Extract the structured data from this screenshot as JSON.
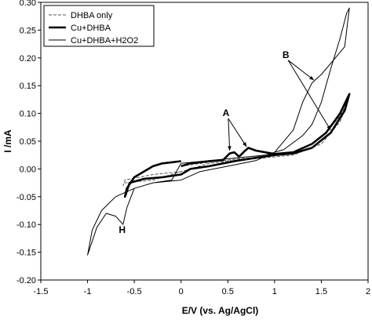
{
  "chart_data": {
    "type": "line",
    "xlabel": "E/V (vs. Ag/AgCl)",
    "ylabel": "I /mA",
    "xlim": [
      -1.5,
      2
    ],
    "ylim": [
      -0.2,
      0.3
    ],
    "x_ticks": [
      -1.5,
      -1,
      -0.5,
      0,
      0.5,
      1,
      1.5,
      2
    ],
    "x_tick_labels": [
      "-1.5",
      "-1",
      "-0.5",
      "0",
      "0.5",
      "1",
      "1.5",
      "2"
    ],
    "y_ticks": [
      -0.2,
      -0.15,
      -0.1,
      -0.05,
      0,
      0.05,
      0.1,
      0.15,
      0.2,
      0.25,
      0.3
    ],
    "y_tick_labels": [
      "-0.20",
      "-0.15",
      "-0.10",
      "-0.05",
      "0.00",
      "0.05",
      "0.10",
      "0.15",
      "0.20",
      "0.25",
      "0.30"
    ],
    "grid": false,
    "legend_position": "top-left",
    "series": [
      {
        "name": "DHBA only",
        "style": "dashed",
        "color": "#555555",
        "points": [
          [
            0,
            0.005
          ],
          [
            0.3,
            0.012
          ],
          [
            0.6,
            0.018
          ],
          [
            0.9,
            0.022
          ],
          [
            1.2,
            0.03
          ],
          [
            1.4,
            0.045
          ],
          [
            1.55,
            0.065
          ],
          [
            1.7,
            0.095
          ],
          [
            1.78,
            0.12
          ],
          [
            1.7,
            0.085
          ],
          [
            1.5,
            0.045
          ],
          [
            1.2,
            0.025
          ],
          [
            0.9,
            0.02
          ],
          [
            0.6,
            0.016
          ],
          [
            0.3,
            0.01
          ],
          [
            0,
            -0.005
          ],
          [
            -0.3,
            -0.02
          ],
          [
            -0.6,
            -0.025
          ],
          [
            -0.62,
            -0.03
          ],
          [
            -0.6,
            -0.02
          ],
          [
            -0.3,
            -0.01
          ],
          [
            0,
            -0.005
          ]
        ]
      },
      {
        "name": "Cu+DHBA",
        "style": "bold",
        "color": "#000000",
        "points": [
          [
            0,
            0.005
          ],
          [
            0.1,
            0.01
          ],
          [
            0.3,
            0.014
          ],
          [
            0.45,
            0.016
          ],
          [
            0.52,
            0.028
          ],
          [
            0.57,
            0.03
          ],
          [
            0.62,
            0.022
          ],
          [
            0.68,
            0.032
          ],
          [
            0.72,
            0.038
          ],
          [
            0.8,
            0.033
          ],
          [
            1.0,
            0.027
          ],
          [
            1.2,
            0.03
          ],
          [
            1.4,
            0.045
          ],
          [
            1.55,
            0.065
          ],
          [
            1.7,
            0.1
          ],
          [
            1.8,
            0.135
          ],
          [
            1.75,
            0.105
          ],
          [
            1.6,
            0.065
          ],
          [
            1.4,
            0.038
          ],
          [
            1.2,
            0.028
          ],
          [
            1.0,
            0.025
          ],
          [
            0.8,
            0.02
          ],
          [
            0.6,
            0.015
          ],
          [
            0.3,
            0.005
          ],
          [
            0.1,
            0.0
          ],
          [
            0,
            -0.01
          ],
          [
            -0.2,
            -0.015
          ],
          [
            -0.4,
            -0.018
          ],
          [
            -0.55,
            -0.025
          ],
          [
            -0.6,
            -0.05
          ],
          [
            -0.58,
            -0.035
          ],
          [
            -0.5,
            -0.015
          ],
          [
            -0.4,
            -0.005
          ],
          [
            -0.3,
            0.005
          ],
          [
            -0.2,
            0.01
          ],
          [
            -0.1,
            0.012
          ],
          [
            0,
            0.014
          ]
        ]
      },
      {
        "name": "Cu+DHBA+H2O2",
        "style": "thin",
        "color": "#000000",
        "points": [
          [
            0,
            0.01
          ],
          [
            0.3,
            0.015
          ],
          [
            0.6,
            0.02
          ],
          [
            0.9,
            0.025
          ],
          [
            1.1,
            0.035
          ],
          [
            1.3,
            0.06
          ],
          [
            1.4,
            0.08
          ],
          [
            1.5,
            0.12
          ],
          [
            1.6,
            0.18
          ],
          [
            1.7,
            0.235
          ],
          [
            1.77,
            0.28
          ],
          [
            1.8,
            0.29
          ],
          [
            1.75,
            0.22
          ],
          [
            1.65,
            0.2
          ],
          [
            1.5,
            0.17
          ],
          [
            1.4,
            0.155
          ],
          [
            1.3,
            0.12
          ],
          [
            1.2,
            0.07
          ],
          [
            1.0,
            0.03
          ],
          [
            0.8,
            0.015
          ],
          [
            0.5,
            0.005
          ],
          [
            0.2,
            -0.005
          ],
          [
            0,
            -0.02
          ],
          [
            -0.3,
            -0.025
          ],
          [
            -0.5,
            -0.035
          ],
          [
            -0.58,
            -0.07
          ],
          [
            -0.62,
            -0.1
          ],
          [
            -0.7,
            -0.085
          ],
          [
            -0.8,
            -0.08
          ],
          [
            -0.9,
            -0.105
          ],
          [
            -1.0,
            -0.155
          ],
          [
            -0.95,
            -0.11
          ],
          [
            -0.85,
            -0.075
          ],
          [
            -0.7,
            -0.05
          ],
          [
            -0.5,
            -0.035
          ],
          [
            -0.3,
            -0.025
          ],
          [
            -0.1,
            -0.02
          ],
          [
            0,
            0.01
          ]
        ]
      }
    ],
    "annotations": [
      {
        "text": "A",
        "x": 0.48,
        "y": 0.095,
        "arrows_to": [
          [
            0.52,
            0.033
          ],
          [
            0.7,
            0.04
          ]
        ]
      },
      {
        "text": "B",
        "x": 1.12,
        "y": 0.2,
        "arrows_to": [
          [
            1.42,
            0.16
          ],
          [
            1.6,
            0.07
          ]
        ]
      },
      {
        "text": "H",
        "x": -0.63,
        "y": -0.115,
        "arrows_to": []
      }
    ]
  }
}
